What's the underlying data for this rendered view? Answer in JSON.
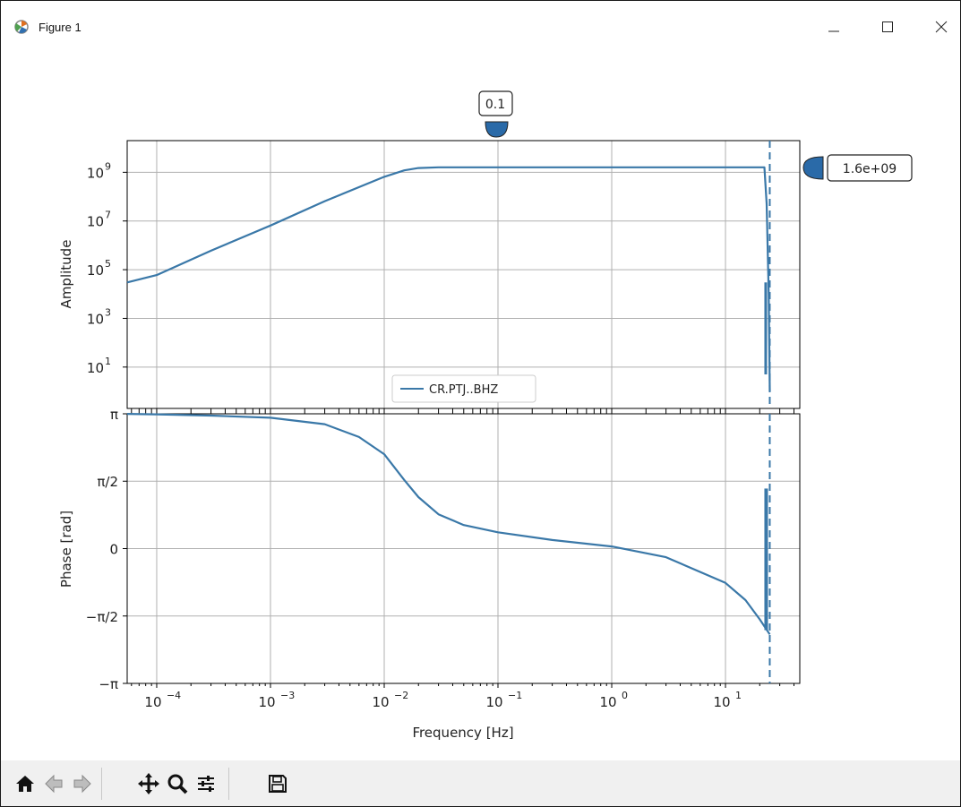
{
  "window": {
    "title": "Figure 1",
    "icons": {
      "app": "matplotlib-icon",
      "minimize": "minimize-icon",
      "maximize": "maximize-icon",
      "close": "close-icon"
    }
  },
  "toolbar": {
    "buttons": [
      "home-icon",
      "back-arrow-icon",
      "forward-arrow-icon",
      "pan-icon",
      "zoom-icon",
      "configure-subplots-icon",
      "save-icon"
    ]
  },
  "annotations": {
    "freq_marker": "0.1",
    "amp_marker": "1.6e+09"
  },
  "colors": {
    "line": "#3a78a8",
    "marker_fill": "#2a6aa8",
    "grid": "#b0b0b0"
  },
  "chart_data": [
    {
      "type": "line",
      "panel": "amplitude",
      "ylabel": "Amplitude",
      "xscale": "log",
      "yscale": "log",
      "xlim": [
        5.5e-05,
        45
      ],
      "ylim": [
        0.2,
        20000000000.0
      ],
      "yticks": [
        {
          "value": 10,
          "base": "10",
          "exp": "1"
        },
        {
          "value": 1000,
          "base": "10",
          "exp": "3"
        },
        {
          "value": 100000,
          "base": "10",
          "exp": "5"
        },
        {
          "value": 10000000,
          "base": "10",
          "exp": "7"
        },
        {
          "value": 1000000000,
          "base": "10",
          "exp": "9"
        }
      ],
      "legend": "lower-center",
      "series": [
        {
          "name": "CR.PTJ..BHZ",
          "x": [
            5.5e-05,
            0.0001,
            0.0003,
            0.001,
            0.003,
            0.01,
            0.015,
            0.02,
            0.03,
            0.1,
            1,
            10,
            22,
            23,
            24,
            24.5
          ],
          "y": [
            30000.0,
            60000.0,
            600000.0,
            6500000.0,
            65000000.0,
            650000000.0,
            1200000000.0,
            1500000000.0,
            1600000000.0,
            1600000000.0,
            1600000000.0,
            1600000000.0,
            1600000000.0,
            50000000.0,
            10000.0,
            1
          ]
        }
      ],
      "vline": 24.5,
      "grid": true
    },
    {
      "type": "line",
      "panel": "phase",
      "ylabel": "Phase [rad]",
      "xlabel": "Frequency [Hz]",
      "xscale": "log",
      "xlim": [
        5.5e-05,
        45
      ],
      "ylim": [
        -3.14159,
        3.14159
      ],
      "yticks": [
        "−π",
        "−π/2",
        "0",
        "π/2",
        "π"
      ],
      "xticks": [
        {
          "value": 0.0001,
          "base": "10",
          "exp": "−4"
        },
        {
          "value": 0.001,
          "base": "10",
          "exp": "−3"
        },
        {
          "value": 0.01,
          "base": "10",
          "exp": "−2"
        },
        {
          "value": 0.1,
          "base": "10",
          "exp": "−1"
        },
        {
          "value": 1,
          "base": "10",
          "exp": "0"
        },
        {
          "value": 10,
          "base": "10",
          "exp": "1"
        }
      ],
      "series": [
        {
          "name": "CR.PTJ..BHZ",
          "x": [
            5.5e-05,
            0.0001,
            0.0003,
            0.001,
            0.003,
            0.006,
            0.01,
            0.015,
            0.02,
            0.03,
            0.05,
            0.1,
            0.3,
            1,
            3,
            10,
            15,
            20,
            24.5
          ],
          "y": [
            3.14,
            3.13,
            3.1,
            3.05,
            2.9,
            2.6,
            2.2,
            1.6,
            1.2,
            0.8,
            0.55,
            0.38,
            0.2,
            0.05,
            -0.2,
            -0.8,
            -1.2,
            -1.65,
            -2.0
          ]
        }
      ],
      "vline": 24.5,
      "spike_y": [
        -1.9,
        1.4
      ],
      "grid": true
    }
  ]
}
